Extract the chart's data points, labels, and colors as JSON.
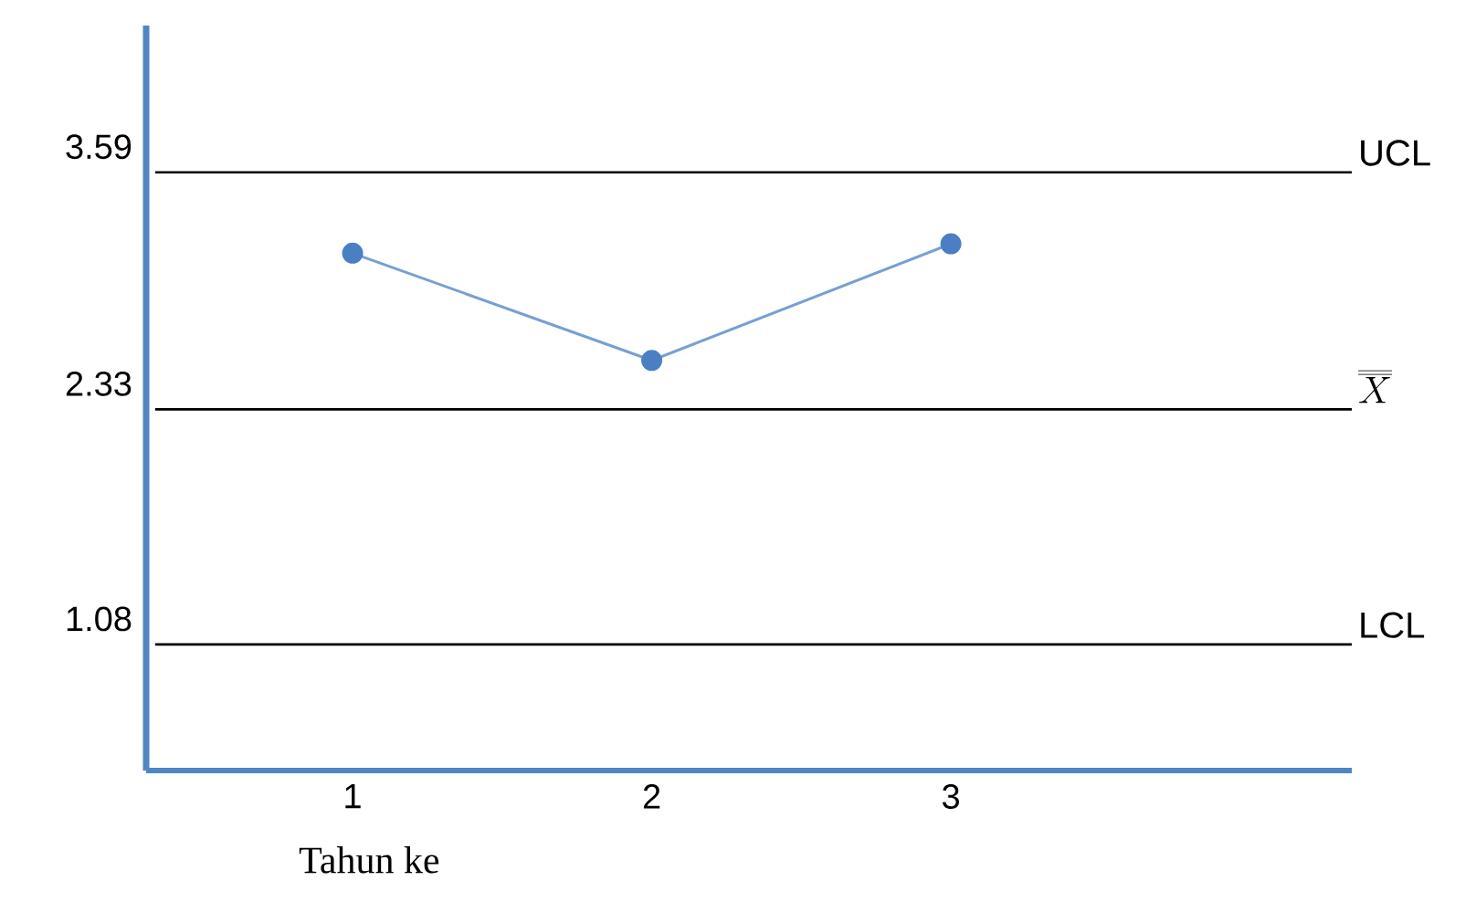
{
  "chart_data": {
    "type": "line",
    "xlabel": "Tahun ke",
    "x": [
      1,
      2,
      3
    ],
    "series": [
      {
        "color": "#4a7fc4",
        "values": [
          3.16,
          2.59,
          3.21
        ]
      }
    ],
    "marker": "circle",
    "line_style": "solid",
    "grid": false,
    "xlim": [
      0.31,
      4.34
    ],
    "xticks": [
      1,
      2,
      3
    ],
    "ylim": [
      0.41,
      4.37
    ],
    "yticks": [
      3.59,
      2.33,
      1.08
    ],
    "ref_lines": [
      {
        "axis": "y",
        "value": 3.59,
        "label": "\\mathrm{UCL}",
        "color": "#000000"
      },
      {
        "axis": "y",
        "value": 2.33,
        "label": "\\overline{\\overline{X}}",
        "color": "#000000"
      },
      {
        "axis": "y",
        "value": 1.08,
        "label": "\\mathrm{LCL}",
        "color": "#000000"
      }
    ]
  }
}
